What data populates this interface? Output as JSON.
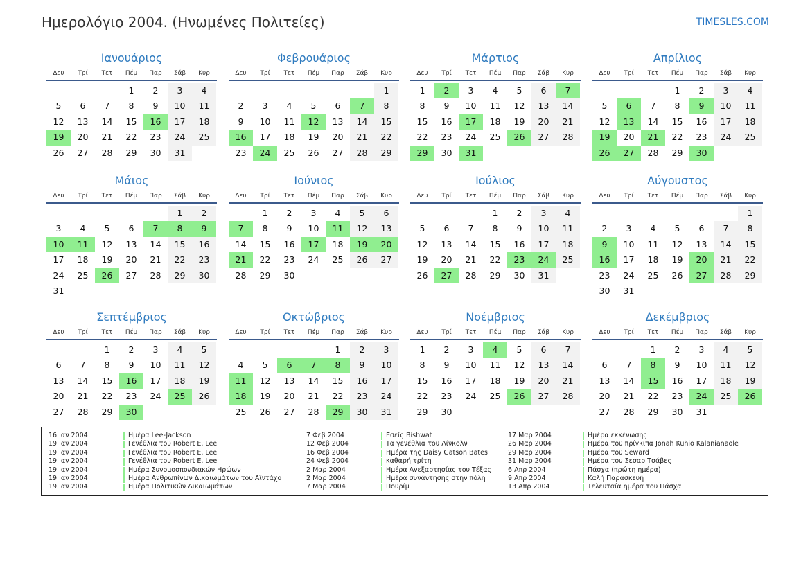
{
  "title": "Ημερολόγιο 2004. (Ηνωμένες Πολιτείες)",
  "site": "TIMESLES.COM",
  "weekdays": [
    "Δευ",
    "Τρί",
    "Τετ",
    "Πέμ",
    "Παρ",
    "Σάβ",
    "Κυρ"
  ],
  "months": [
    {
      "name": "Ιανουάριος",
      "offset": 3,
      "days": 31,
      "holidays": [
        16,
        19
      ]
    },
    {
      "name": "Φεβρουάριος",
      "offset": 6,
      "days": 29,
      "holidays": [
        7,
        12,
        16,
        24
      ]
    },
    {
      "name": "Μάρτιος",
      "offset": 0,
      "days": 31,
      "holidays": [
        2,
        7,
        17,
        26,
        29,
        31
      ]
    },
    {
      "name": "Απρίλιος",
      "offset": 3,
      "days": 30,
      "holidays": [
        6,
        9,
        13,
        19,
        21,
        26,
        27,
        30
      ]
    },
    {
      "name": "Μάιος",
      "offset": 5,
      "days": 31,
      "holidays": [
        7,
        8,
        9,
        10,
        11,
        26
      ]
    },
    {
      "name": "Ιούνιος",
      "offset": 1,
      "days": 30,
      "holidays": [
        7,
        11,
        17,
        19,
        20,
        21
      ]
    },
    {
      "name": "Ιούλιος",
      "offset": 3,
      "days": 31,
      "holidays": [
        23,
        24,
        27
      ]
    },
    {
      "name": "Αύγουστος",
      "offset": 6,
      "days": 31,
      "holidays": [
        9,
        16,
        20,
        27
      ]
    },
    {
      "name": "Σεπτέμβριος",
      "offset": 2,
      "days": 30,
      "holidays": [
        16,
        25,
        30
      ]
    },
    {
      "name": "Οκτώβριος",
      "offset": 4,
      "days": 31,
      "holidays": [
        6,
        7,
        8,
        11,
        18,
        29
      ]
    },
    {
      "name": "Νοέμβριος",
      "offset": 0,
      "days": 30,
      "holidays": [
        4,
        26
      ]
    },
    {
      "name": "Δεκέμβριος",
      "offset": 2,
      "days": 31,
      "holidays": [
        8,
        15,
        24,
        26
      ]
    }
  ],
  "holiday_list": [
    [
      {
        "date": "16 Ιαν 2004",
        "name": "Ημέρα Lee-Jackson"
      },
      {
        "date": "19 Ιαν 2004",
        "name": "Γενέθλια του Robert E. Lee"
      },
      {
        "date": "19 Ιαν 2004",
        "name": "Γενέθλια του Robert E. Lee"
      },
      {
        "date": "19 Ιαν 2004",
        "name": "Γενέθλια του Robert E. Lee"
      },
      {
        "date": "19 Ιαν 2004",
        "name": "Ημέρα Συνομοσπονδιακών Ηρώων"
      },
      {
        "date": "19 Ιαν 2004",
        "name": "Ημέρα Ανθρωπίνων Δικαιωμάτων του Αϊντάχο"
      },
      {
        "date": "19 Ιαν 2004",
        "name": "Ημέρα Πολιτικών Δικαιωμάτων"
      }
    ],
    [
      {
        "date": "7 Φεβ 2004",
        "name": "Εσείς Bishwat"
      },
      {
        "date": "12 Φεβ 2004",
        "name": "Τα γενέθλια του Λίνκολν"
      },
      {
        "date": "16 Φεβ 2004",
        "name": "Ημέρα της Daisy Gatson Bates"
      },
      {
        "date": "24 Φεβ 2004",
        "name": "καθαρή τρίτη"
      },
      {
        "date": "2 Μαρ 2004",
        "name": "Ημέρα Ανεξαρτησίας του Τέξας"
      },
      {
        "date": "2 Μαρ 2004",
        "name": "Ημέρα συνάντησης στην πόλη"
      },
      {
        "date": "7 Μαρ 2004",
        "name": "Πουρίμ"
      }
    ],
    [
      {
        "date": "17 Μαρ 2004",
        "name": "Ημέρα εκκένωσης"
      },
      {
        "date": "26 Μαρ 2004",
        "name": "Ημέρα του πρίγκιπα Jonah Kuhio Kalanianaole"
      },
      {
        "date": "29 Μαρ 2004",
        "name": "Ημέρα του Seward"
      },
      {
        "date": "31 Μαρ 2004",
        "name": "Ημέρα του Σεσαρ Τσάβες"
      },
      {
        "date": "6 Απρ 2004",
        "name": "Πάσχα (πρώτη ημέρα)"
      },
      {
        "date": "9 Απρ 2004",
        "name": "Καλή Παρασκευή"
      },
      {
        "date": "13 Απρ 2004",
        "name": "Τελευταία ημέρα του Πάσχα"
      }
    ]
  ]
}
